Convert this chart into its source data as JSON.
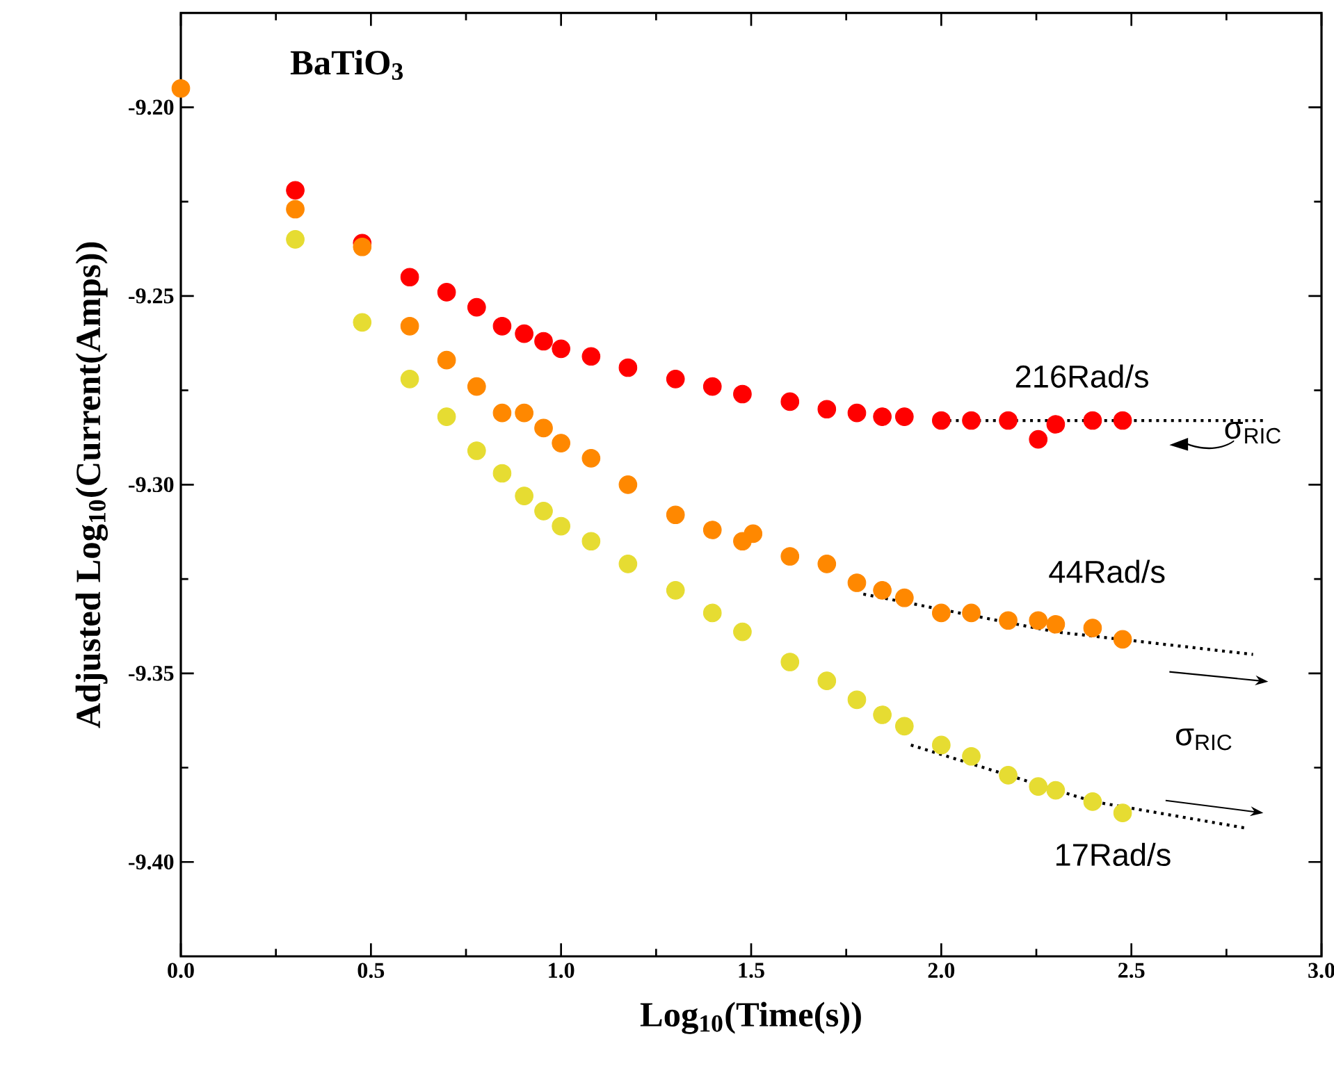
{
  "chart_data": {
    "type": "scatter",
    "xlabel": "Log$_{10}$(Time(s))",
    "ylabel": "Adjusted Log$_{10}$(Current(Amps))",
    "xlim": [
      0,
      3
    ],
    "ylim": [
      -9.425,
      -9.175
    ],
    "xticks": [
      {
        "value": 0,
        "label": "0.0"
      },
      {
        "value": 0.5,
        "label": "0.5"
      },
      {
        "value": 1,
        "label": "1.0"
      },
      {
        "value": 1.5,
        "label": "1.5"
      },
      {
        "value": 2,
        "label": "2.0"
      },
      {
        "value": 2.5,
        "label": "2.5"
      },
      {
        "value": 3,
        "label": "3.0"
      }
    ],
    "yticks": [
      {
        "value": -9.2,
        "label": "-9.20"
      },
      {
        "value": -9.25,
        "label": "-9.25"
      },
      {
        "value": -9.3,
        "label": "-9.30"
      },
      {
        "value": -9.35,
        "label": "-9.35"
      },
      {
        "value": -9.4,
        "label": "-9.40"
      }
    ],
    "marker": "circle",
    "grid": false,
    "series": [
      {
        "color": "#ff0000",
        "x": [
          0.301,
          0.477,
          0.602,
          0.699,
          0.778,
          0.845,
          0.903,
          0.954,
          1.0,
          1.079,
          1.176,
          1.301,
          1.398,
          1.477,
          1.602,
          1.699,
          1.778,
          1.845,
          1.903,
          2.0,
          2.079,
          2.176,
          2.255,
          2.301,
          2.398,
          2.477
        ],
        "values": [
          -9.222,
          -9.236,
          -9.245,
          -9.249,
          -9.253,
          -9.258,
          -9.26,
          -9.262,
          -9.264,
          -9.266,
          -9.269,
          -9.272,
          -9.274,
          -9.276,
          -9.278,
          -9.28,
          -9.281,
          -9.282,
          -9.282,
          -9.283,
          -9.283,
          -9.283,
          -9.288,
          -9.284,
          -9.283,
          -9.283
        ]
      },
      {
        "color": "#ff8800",
        "x": [
          0,
          0.301,
          0.477,
          0.602,
          0.699,
          0.778,
          0.845,
          0.903,
          0.954,
          1.0,
          1.079,
          1.176,
          1.301,
          1.398,
          1.477,
          1.505,
          1.602,
          1.699,
          1.778,
          1.845,
          1.903,
          2.0,
          2.079,
          2.176,
          2.255,
          2.301,
          2.398,
          2.477
        ],
        "values": [
          -9.195,
          -9.227,
          -9.237,
          -9.258,
          -9.267,
          -9.274,
          -9.281,
          -9.281,
          -9.285,
          -9.289,
          -9.293,
          -9.3,
          -9.308,
          -9.312,
          -9.315,
          -9.313,
          -9.319,
          -9.321,
          -9.326,
          -9.328,
          -9.33,
          -9.334,
          -9.334,
          -9.336,
          -9.336,
          -9.337,
          -9.338,
          -9.341
        ]
      },
      {
        "color": "#e6dc32",
        "x": [
          0.301,
          0.477,
          0.602,
          0.699,
          0.778,
          0.845,
          0.903,
          0.954,
          1.0,
          1.079,
          1.176,
          1.301,
          1.398,
          1.477,
          1.602,
          1.699,
          1.778,
          1.845,
          1.903,
          2.0,
          2.079,
          2.176,
          2.255,
          2.301,
          2.398,
          2.477
        ],
        "values": [
          -9.235,
          -9.257,
          -9.272,
          -9.282,
          -9.291,
          -9.297,
          -9.303,
          -9.307,
          -9.311,
          -9.315,
          -9.321,
          -9.328,
          -9.334,
          -9.339,
          -9.347,
          -9.352,
          -9.357,
          -9.361,
          -9.364,
          -9.369,
          -9.372,
          -9.377,
          -9.38,
          -9.381,
          -9.384,
          -9.387
        ]
      },
      {
        "type": "line",
        "color": "#000000",
        "line_style": "dotted",
        "marker": "none",
        "x": [
          1.98,
          2.85
        ],
        "values": [
          -9.283,
          -9.283
        ]
      },
      {
        "type": "line",
        "color": "#000000",
        "line_style": "dotted",
        "marker": "none",
        "x": [
          1.795,
          2.3,
          2.82
        ],
        "values": [
          -9.329,
          -9.339,
          -9.345
        ]
      },
      {
        "type": "line",
        "color": "#000000",
        "line_style": "dotted",
        "marker": "none",
        "x": [
          1.92,
          2.4,
          2.8
        ],
        "values": [
          -9.369,
          -9.384,
          -9.391
        ]
      }
    ],
    "annotations": [
      "**BaTiO$_{3}$**",
      "216Rad/s",
      "σ$_{RIC}$",
      "44Rad/s",
      "σ$_{RIC}$",
      "17Rad/s"
    ]
  }
}
